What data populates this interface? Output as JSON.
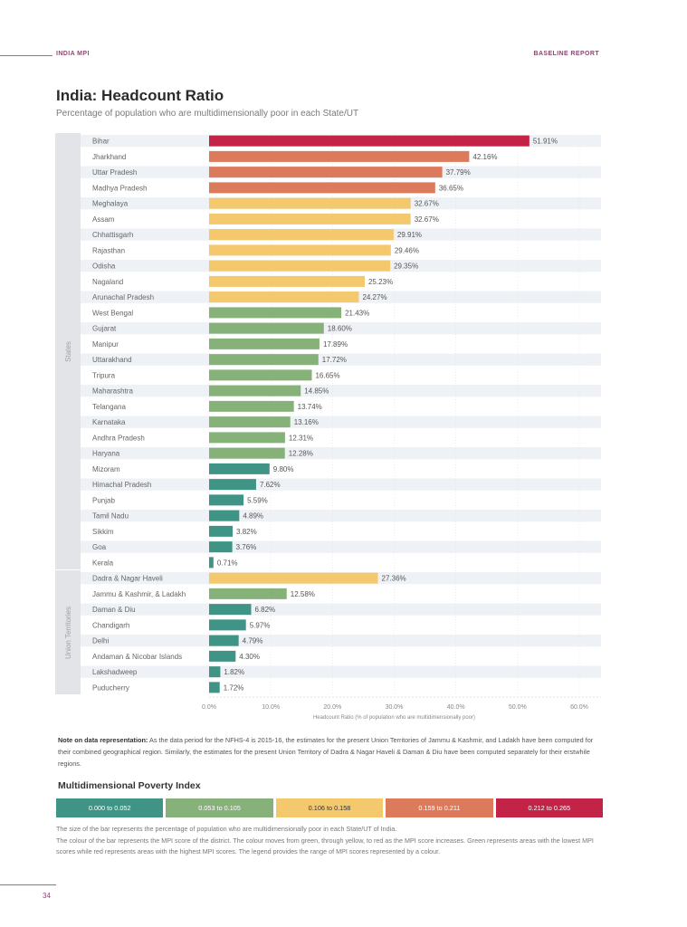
{
  "header": {
    "left": "INDIA MPI",
    "right": "BASELINE REPORT"
  },
  "title": "India: Headcount Ratio",
  "subtitle": "Percentage of population who are multidimensionally poor in each State/UT",
  "chart_data": {
    "type": "bar",
    "orientation": "horizontal",
    "title": "India: Headcount Ratio",
    "xlabel": "Headcount Ratio (% of population who are multidimensionally poor)",
    "ylabel": "",
    "xlim": [
      0,
      60
    ],
    "xticks": [
      "0.0%",
      "10.0%",
      "20.0%",
      "30.0%",
      "40.0%",
      "50.0%",
      "60.0%"
    ],
    "grid": true,
    "groups": [
      {
        "name": "States",
        "start": 0,
        "end": 27
      },
      {
        "name": "Union Territories",
        "start": 28,
        "end": 35
      }
    ],
    "categories": [
      "Bihar",
      "Jharkhand",
      "Uttar Pradesh",
      "Madhya Pradesh",
      "Meghalaya",
      "Assam",
      "Chhattisgarh",
      "Rajasthan",
      "Odisha",
      "Nagaland",
      "Arunachal Pradesh",
      "West Bengal",
      "Gujarat",
      "Manipur",
      "Uttarakhand",
      "Tripura",
      "Maharashtra",
      "Telangana",
      "Karnataka",
      "Andhra Pradesh",
      "Haryana",
      "Mizoram",
      "Himachal Pradesh",
      "Punjab",
      "Tamil Nadu",
      "Sikkim",
      "Goa",
      "Kerala",
      "Dadra & Nagar Haveli",
      "Jammu & Kashmir, & Ladakh",
      "Daman & Diu",
      "Chandigarh",
      "Delhi",
      "Andaman & Nicobar Islands",
      "Lakshadweep",
      "Puducherry"
    ],
    "values": [
      51.91,
      42.16,
      37.79,
      36.65,
      32.67,
      32.67,
      29.91,
      29.46,
      29.35,
      25.23,
      24.27,
      21.43,
      18.6,
      17.89,
      17.72,
      16.65,
      14.85,
      13.74,
      13.16,
      12.31,
      12.28,
      9.8,
      7.62,
      5.59,
      4.89,
      3.82,
      3.76,
      0.71,
      27.36,
      12.58,
      6.82,
      5.97,
      4.79,
      4.3,
      1.82,
      1.72
    ],
    "labels": [
      "51.91%",
      "42.16%",
      "37.79%",
      "36.65%",
      "32.67%",
      "32.67%",
      "29.91%",
      "29.46%",
      "29.35%",
      "25.23%",
      "24.27%",
      "21.43%",
      "18.60%",
      "17.89%",
      "17.72%",
      "16.65%",
      "14.85%",
      "13.74%",
      "13.16%",
      "12.31%",
      "12.28%",
      "9.80%",
      "7.62%",
      "5.59%",
      "4.89%",
      "3.82%",
      "3.76%",
      "0.71%",
      "27.36%",
      "12.58%",
      "6.82%",
      "5.97%",
      "4.79%",
      "4.30%",
      "1.82%",
      "1.72%"
    ],
    "color_class": [
      4,
      3,
      3,
      3,
      2,
      2,
      2,
      2,
      2,
      2,
      2,
      1,
      1,
      1,
      1,
      1,
      1,
      1,
      1,
      1,
      1,
      0,
      0,
      0,
      0,
      0,
      0,
      0,
      2,
      1,
      0,
      0,
      0,
      0,
      0,
      0
    ]
  },
  "note": {
    "bold": "Note on data representation:",
    "text": " As the data period for the NFHS-4 is 2015-16, the estimates for the present Union Territories of Jammu & Kashmir, and Ladakh have been computed for their combined geographical region. Similarly, the estimates for the present Union Territory of Dadra & Nagar Haveli & Daman & Diu have been computed separately for their erstwhile regions."
  },
  "legend": {
    "title": "Multidimensional Poverty Index",
    "items": [
      {
        "label": "0.000 to 0.052",
        "color": "#3f9485"
      },
      {
        "label": "0.053 to 0.105",
        "color": "#86b27a"
      },
      {
        "label": "0.106 to 0.158",
        "color": "#f4c86c"
      },
      {
        "label": "0.159 to 0.211",
        "color": "#dc7a5c"
      },
      {
        "label": "0.212 to 0.265",
        "color": "#c42348"
      }
    ]
  },
  "description": [
    "The size of the bar represents the percentage of population who are multidimensionally poor in each State/UT of India.",
    "The colour of the bar represents the MPI score of the district. The colour moves from green, through yellow, to red as the MPI score increases. Green represents areas with the lowest MPI scores while red represents areas with the highest MPI scores. The legend provides the range of MPI scores represented by a colour."
  ],
  "page_number": "34"
}
